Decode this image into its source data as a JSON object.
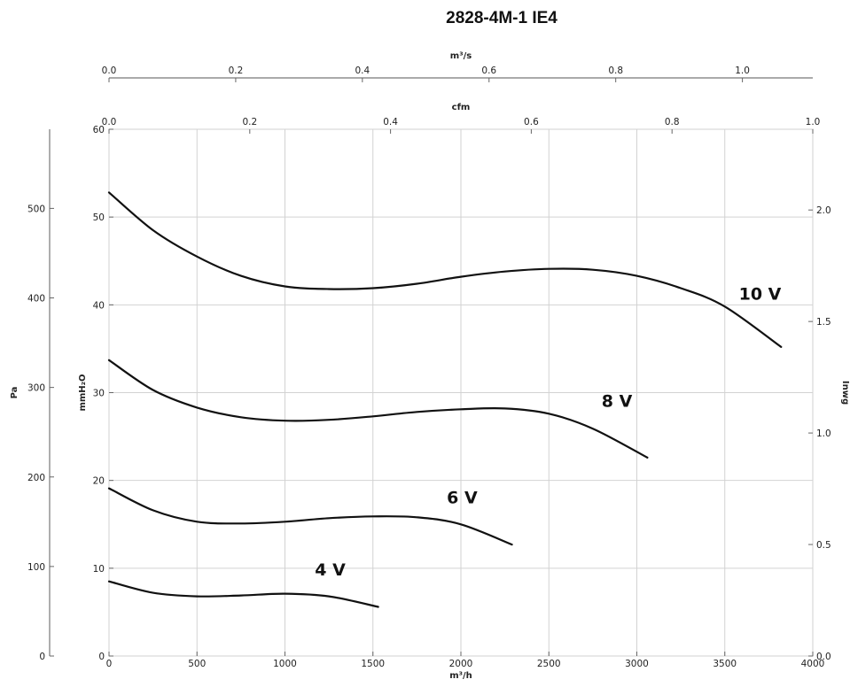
{
  "chart_data": {
    "type": "line",
    "title": "2828-4M-1 IE4",
    "x_axis": {
      "label": "m³/h",
      "range": [
        0,
        4000
      ],
      "ticks": [
        "0",
        "500",
        "1000",
        "1500",
        "2000",
        "2500",
        "3000",
        "3500",
        "4000"
      ]
    },
    "x_top_axis_1": {
      "label": "m³/s",
      "range": [
        0,
        1.1111
      ],
      "ticks": [
        "0.0",
        "0.2",
        "0.4",
        "0.6",
        "0.8",
        "1.0"
      ]
    },
    "x_top_axis_2": {
      "label": "cfm",
      "range": [
        0,
        1.0
      ],
      "ticks": [
        "0.0",
        "0.2",
        "0.4",
        "0.6",
        "0.8",
        "1.0"
      ]
    },
    "y_axis": {
      "label": "mmH₂O",
      "range": [
        0,
        60
      ],
      "ticks": [
        "0",
        "10",
        "20",
        "30",
        "40",
        "50",
        "60"
      ]
    },
    "y_outer_left_axis": {
      "label": "Pa",
      "range": [
        0,
        588.4
      ],
      "ticks": [
        "0",
        "100",
        "200",
        "300",
        "400",
        "500"
      ]
    },
    "y_right_axis": {
      "label": "Inwg",
      "range": [
        0,
        2.362
      ],
      "ticks": [
        "0.0",
        "0.5",
        "1.0",
        "1.5",
        "2.0"
      ]
    },
    "grid": true,
    "series": [
      {
        "name": "10 V",
        "x": [
          0,
          250,
          500,
          750,
          1000,
          1250,
          1500,
          1750,
          2000,
          2250,
          2500,
          2750,
          3000,
          3250,
          3500,
          3820
        ],
        "y": [
          52.8,
          48.5,
          45.5,
          43.3,
          42.1,
          41.8,
          41.9,
          42.4,
          43.2,
          43.8,
          44.1,
          44.0,
          43.3,
          41.9,
          39.8,
          35.2
        ]
      },
      {
        "name": "8 V",
        "x": [
          0,
          250,
          500,
          750,
          1000,
          1250,
          1500,
          1750,
          2000,
          2250,
          2500,
          2750,
          3060
        ],
        "y": [
          33.7,
          30.3,
          28.3,
          27.2,
          26.8,
          26.9,
          27.3,
          27.8,
          28.1,
          28.2,
          27.6,
          25.9,
          22.6
        ]
      },
      {
        "name": "6 V",
        "x": [
          0,
          250,
          500,
          750,
          1000,
          1250,
          1500,
          1750,
          2000,
          2290
        ],
        "y": [
          19.1,
          16.6,
          15.3,
          15.1,
          15.3,
          15.7,
          15.9,
          15.8,
          15.0,
          12.7
        ]
      },
      {
        "name": "4 V",
        "x": [
          0,
          250,
          500,
          750,
          1000,
          1250,
          1530
        ],
        "y": [
          8.5,
          7.2,
          6.8,
          6.9,
          7.1,
          6.8,
          5.6
        ]
      }
    ]
  }
}
